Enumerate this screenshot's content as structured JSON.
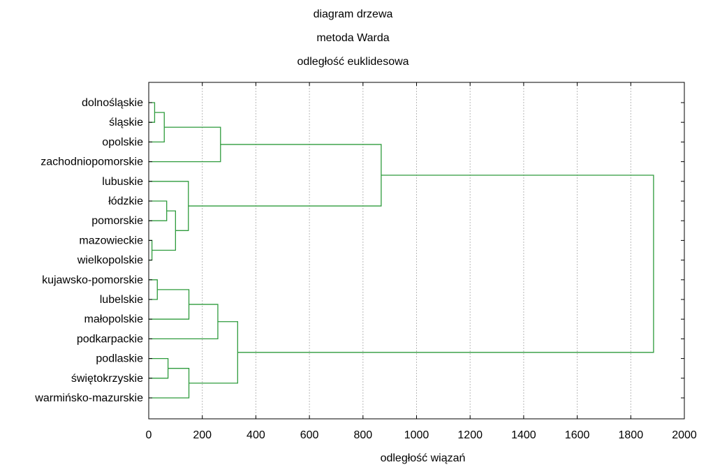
{
  "chart_data": {
    "type": "dendrogram",
    "title": [
      "diagram drzewa",
      "metoda Warda",
      "odległość euklidesowa"
    ],
    "xlabel": "odległość wiązań",
    "ylabel": "",
    "xlim": [
      0,
      2000
    ],
    "xticks": [
      "0",
      "200",
      "400",
      "600",
      "800",
      "1000",
      "1200",
      "1400",
      "1600",
      "1800",
      "2000"
    ],
    "grid": true,
    "line_color": "#2e9b3c",
    "leaves": [
      "dolnośląskie",
      "śląskie",
      "opolskie",
      "zachodniopomorskie",
      "lubuskie",
      "łódzkie",
      "pomorskie",
      "mazowieckie",
      "wielkopolskie",
      "kujawsko-pomorskie",
      "lubelskie",
      "małopolskie",
      "podkarpackie",
      "podlaskie",
      "świętokrzyskie",
      "warmińsko-mazurskie"
    ],
    "merges": [
      {
        "id": "m1",
        "left": "L0",
        "right": "L1",
        "distance": 22
      },
      {
        "id": "m2",
        "left": "m1",
        "right": "L2",
        "distance": 58
      },
      {
        "id": "m3",
        "left": "m2",
        "right": "L3",
        "distance": 268
      },
      {
        "id": "m4",
        "left": "L5",
        "right": "L6",
        "distance": 67
      },
      {
        "id": "m5",
        "left": "L7",
        "right": "L8",
        "distance": 12
      },
      {
        "id": "m6",
        "left": "m4",
        "right": "m5",
        "distance": 100
      },
      {
        "id": "m7",
        "left": "L4",
        "right": "m6",
        "distance": 148
      },
      {
        "id": "m8",
        "left": "m3",
        "right": "m7",
        "distance": 868
      },
      {
        "id": "m9",
        "left": "L9",
        "right": "L10",
        "distance": 32
      },
      {
        "id": "m10",
        "left": "m9",
        "right": "L11",
        "distance": 150
      },
      {
        "id": "m11",
        "left": "m10",
        "right": "L12",
        "distance": 258
      },
      {
        "id": "m12",
        "left": "L13",
        "right": "L14",
        "distance": 72
      },
      {
        "id": "m13",
        "left": "m12",
        "right": "L15",
        "distance": 150
      },
      {
        "id": "m14",
        "left": "m11",
        "right": "m13",
        "distance": 332
      },
      {
        "id": "m15",
        "left": "m8",
        "right": "m14",
        "distance": 1885
      }
    ]
  }
}
